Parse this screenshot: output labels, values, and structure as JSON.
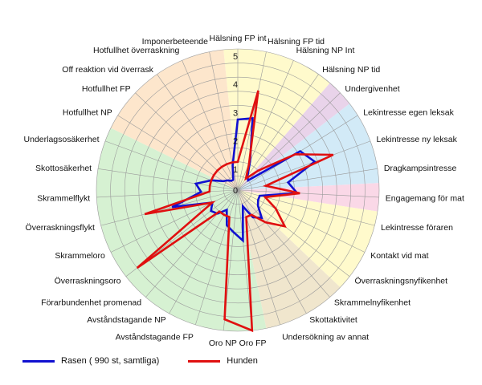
{
  "chart_data": {
    "type": "radar",
    "rmax": 5,
    "ticks": [
      "1",
      "2",
      "3",
      "4",
      "5"
    ],
    "categories": [
      "Hälsning FP int",
      "Hälsning FP tid",
      "Hälsning NP Int",
      "Hälsning NP tid",
      "Undergivenhet",
      "Lekintresse egen leksak",
      "Lekintresse ny leksak",
      "Dragkampsintresse",
      "Engagemang för mat",
      "Lekintresse föraren",
      "Kontakt vid mat",
      "Överraskningsnyfikenhet",
      "Skrammelnyfikenhet",
      "Skottaktivitet",
      "Undersökning av annat",
      "Oro FP",
      "Oro NP",
      "Avståndstagande FP",
      "Avståndstagande NP",
      "Förarbundenhet promenad",
      "Överraskningsoro",
      "Skrammeloro",
      "Överraskningsflykt",
      "Skrammelflykt",
      "Skottosäkerhet",
      "Underlagsosäkerhet",
      "Hotfullhet NP",
      "Hotfullhet FP",
      "Off reaktion vid överrask",
      "Hotfullhet överraskning",
      "Imponerbeteende"
    ],
    "series": [
      {
        "name": "Rasen ( 990 st, samtliga)",
        "color": "#1010d0",
        "values": [
          2.5,
          2.6,
          1.1,
          0.6,
          0.5,
          2.6,
          2.9,
          1.8,
          2.1,
          0.8,
          0.8,
          0.9,
          1.3,
          1.1,
          0.6,
          1.8,
          1.5,
          1.3,
          0.8,
          1.1,
          1.2,
          1.0,
          2.4,
          1.3,
          1.5,
          1.0,
          0.6,
          0.5,
          0.4,
          0.4,
          0.9
        ]
      },
      {
        "name": "Hunden",
        "color": "#e01010",
        "values": [
          1.0,
          3.6,
          1.0,
          0.5,
          1.0,
          2.4,
          3.6,
          1.0,
          2.2,
          1.0,
          1.5,
          2.1,
          1.5,
          1.0,
          1.0,
          5.0,
          4.6,
          1.0,
          1.0,
          1.0,
          4.5,
          1.0,
          3.4,
          1.0,
          1.0,
          1.0,
          1.0,
          1.0,
          1.0,
          1.0,
          1.0
        ]
      }
    ],
    "sector_groups": [
      {
        "from": 0,
        "to": 3,
        "color": "#fffacc"
      },
      {
        "from": 4,
        "to": 4,
        "color": "#e9d3ea"
      },
      {
        "from": 5,
        "to": 7,
        "color": "#d2eaf7"
      },
      {
        "from": 8,
        "to": 8,
        "color": "#fad8e7"
      },
      {
        "from": 9,
        "to": 11,
        "color": "#fffacc"
      },
      {
        "from": 12,
        "to": 14,
        "color": "#f0e6cd"
      },
      {
        "from": 15,
        "to": 25,
        "color": "#d6f1d2"
      },
      {
        "from": 26,
        "to": 30,
        "color": "#fde6cc"
      }
    ],
    "grid": true,
    "legend_position": "bottom-left"
  }
}
